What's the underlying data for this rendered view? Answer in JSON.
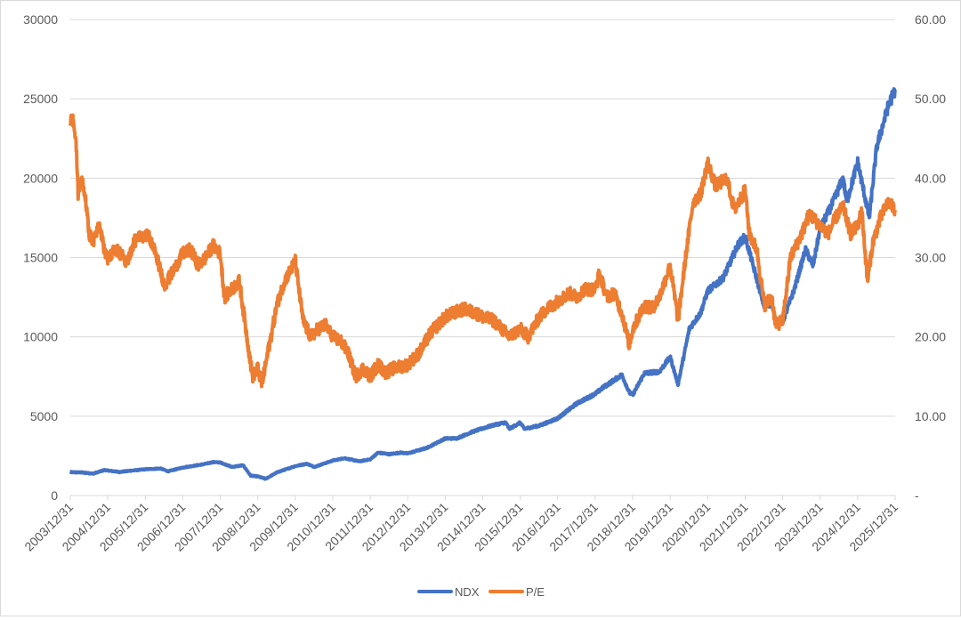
{
  "chart_data": {
    "type": "line",
    "title": "",
    "xlabel": "",
    "ylabel": "",
    "x_ticks": [
      "2003/12/31",
      "2004/12/31",
      "2005/12/31",
      "2006/12/31",
      "2007/12/31",
      "2008/12/31",
      "2009/12/31",
      "2010/12/31",
      "2011/12/31",
      "2012/12/31",
      "2013/12/31",
      "2014/12/31",
      "2015/12/31",
      "2016/12/31",
      "2017/12/31",
      "2018/12/31",
      "2019/12/31",
      "2020/12/31",
      "2021/12/31",
      "2022/12/31",
      "2023/12/31",
      "2024/12/31",
      "2025/12/31"
    ],
    "y_left": {
      "ylim": [
        0,
        30000
      ],
      "ticks": [
        "0",
        "5000",
        "10000",
        "15000",
        "20000",
        "25000",
        "30000"
      ]
    },
    "y_right": {
      "ylim": [
        0,
        60
      ],
      "ticks": [
        "-",
        "10.00",
        "20.00",
        "30.00",
        "40.00",
        "50.00",
        "60.00"
      ]
    },
    "grid": true,
    "legend_position": "bottom",
    "series": [
      {
        "name": "NDX",
        "axis": "left",
        "color": "#4472C4",
        "points": [
          [
            2003.99,
            1470
          ],
          [
            2004.3,
            1450
          ],
          [
            2004.6,
            1380
          ],
          [
            2004.9,
            1600
          ],
          [
            2005.3,
            1480
          ],
          [
            2005.6,
            1560
          ],
          [
            2005.99,
            1650
          ],
          [
            2006.4,
            1700
          ],
          [
            2006.6,
            1520
          ],
          [
            2006.99,
            1760
          ],
          [
            2007.5,
            1950
          ],
          [
            2007.8,
            2100
          ],
          [
            2007.99,
            2080
          ],
          [
            2008.3,
            1800
          ],
          [
            2008.6,
            1900
          ],
          [
            2008.8,
            1250
          ],
          [
            2008.99,
            1200
          ],
          [
            2009.2,
            1050
          ],
          [
            2009.5,
            1450
          ],
          [
            2009.99,
            1850
          ],
          [
            2010.3,
            2000
          ],
          [
            2010.5,
            1800
          ],
          [
            2010.99,
            2200
          ],
          [
            2011.3,
            2350
          ],
          [
            2011.7,
            2150
          ],
          [
            2011.99,
            2280
          ],
          [
            2012.2,
            2700
          ],
          [
            2012.5,
            2600
          ],
          [
            2012.8,
            2700
          ],
          [
            2012.99,
            2650
          ],
          [
            2013.5,
            3000
          ],
          [
            2013.99,
            3590
          ],
          [
            2014.3,
            3600
          ],
          [
            2014.7,
            4000
          ],
          [
            2014.99,
            4230
          ],
          [
            2015.3,
            4450
          ],
          [
            2015.6,
            4600
          ],
          [
            2015.7,
            4200
          ],
          [
            2015.99,
            4590
          ],
          [
            2016.1,
            4200
          ],
          [
            2016.5,
            4400
          ],
          [
            2016.99,
            4860
          ],
          [
            2017.5,
            5800
          ],
          [
            2017.99,
            6400
          ],
          [
            2018.2,
            6800
          ],
          [
            2018.7,
            7600
          ],
          [
            2018.9,
            6500
          ],
          [
            2018.99,
            6330
          ],
          [
            2019.3,
            7700
          ],
          [
            2019.7,
            7800
          ],
          [
            2019.99,
            8730
          ],
          [
            2020.2,
            7000
          ],
          [
            2020.5,
            10500
          ],
          [
            2020.8,
            11500
          ],
          [
            2020.99,
            12880
          ],
          [
            2021.4,
            13700
          ],
          [
            2021.8,
            15800
          ],
          [
            2021.99,
            16320
          ],
          [
            2022.2,
            14500
          ],
          [
            2022.5,
            11900
          ],
          [
            2022.7,
            12100
          ],
          [
            2022.8,
            11000
          ],
          [
            2022.99,
            10940
          ],
          [
            2023.3,
            13000
          ],
          [
            2023.6,
            15500
          ],
          [
            2023.8,
            14500
          ],
          [
            2023.99,
            16830
          ],
          [
            2024.3,
            18300
          ],
          [
            2024.6,
            20000
          ],
          [
            2024.7,
            18500
          ],
          [
            2024.99,
            21010
          ],
          [
            2025.3,
            17500
          ],
          [
            2025.5,
            22000
          ],
          [
            2025.8,
            24500
          ],
          [
            2025.99,
            25600
          ]
        ]
      },
      {
        "name": "P/E",
        "axis": "right",
        "color": "#ED7D31",
        "points": [
          [
            2003.99,
            47
          ],
          [
            2004.05,
            48
          ],
          [
            2004.15,
            44
          ],
          [
            2004.2,
            38
          ],
          [
            2004.3,
            40
          ],
          [
            2004.4,
            37
          ],
          [
            2004.5,
            33
          ],
          [
            2004.6,
            32
          ],
          [
            2004.75,
            34
          ],
          [
            2004.9,
            31
          ],
          [
            2004.99,
            30
          ],
          [
            2005.2,
            31
          ],
          [
            2005.5,
            29.5
          ],
          [
            2005.7,
            32
          ],
          [
            2005.99,
            33
          ],
          [
            2006.1,
            32.5
          ],
          [
            2006.3,
            30
          ],
          [
            2006.5,
            26.5
          ],
          [
            2006.7,
            28
          ],
          [
            2006.99,
            30.5
          ],
          [
            2007.2,
            31
          ],
          [
            2007.4,
            29
          ],
          [
            2007.6,
            30
          ],
          [
            2007.8,
            31.5
          ],
          [
            2007.99,
            30.5
          ],
          [
            2008.1,
            25
          ],
          [
            2008.3,
            26
          ],
          [
            2008.5,
            27
          ],
          [
            2008.7,
            20
          ],
          [
            2008.85,
            15
          ],
          [
            2008.99,
            16
          ],
          [
            2009.1,
            14
          ],
          [
            2009.3,
            19
          ],
          [
            2009.5,
            24
          ],
          [
            2009.7,
            27
          ],
          [
            2009.99,
            29.5
          ],
          [
            2010.2,
            22
          ],
          [
            2010.4,
            20
          ],
          [
            2010.6,
            21
          ],
          [
            2010.8,
            21.5
          ],
          [
            2010.99,
            20
          ],
          [
            2011.2,
            19.5
          ],
          [
            2011.4,
            18
          ],
          [
            2011.6,
            15
          ],
          [
            2011.8,
            16
          ],
          [
            2011.99,
            15
          ],
          [
            2012.2,
            16.5
          ],
          [
            2012.4,
            15.5
          ],
          [
            2012.6,
            16
          ],
          [
            2012.99,
            16.5
          ],
          [
            2013.3,
            18
          ],
          [
            2013.6,
            20.5
          ],
          [
            2013.99,
            22.5
          ],
          [
            2014.2,
            23
          ],
          [
            2014.5,
            23.5
          ],
          [
            2014.8,
            23
          ],
          [
            2014.99,
            22.5
          ],
          [
            2015.3,
            22
          ],
          [
            2015.5,
            21
          ],
          [
            2015.7,
            20
          ],
          [
            2015.99,
            21
          ],
          [
            2016.2,
            20
          ],
          [
            2016.5,
            22.5
          ],
          [
            2016.7,
            23.5
          ],
          [
            2016.99,
            24.5
          ],
          [
            2017.3,
            25.5
          ],
          [
            2017.5,
            25
          ],
          [
            2017.7,
            26
          ],
          [
            2017.99,
            26
          ],
          [
            2018.1,
            28
          ],
          [
            2018.3,
            25
          ],
          [
            2018.5,
            25.5
          ],
          [
            2018.7,
            23
          ],
          [
            2018.9,
            19
          ],
          [
            2018.99,
            21
          ],
          [
            2019.3,
            24
          ],
          [
            2019.5,
            23.5
          ],
          [
            2019.7,
            25
          ],
          [
            2019.99,
            29
          ],
          [
            2020.2,
            22
          ],
          [
            2020.4,
            30
          ],
          [
            2020.6,
            37
          ],
          [
            2020.8,
            38
          ],
          [
            2020.99,
            42
          ],
          [
            2021.2,
            39
          ],
          [
            2021.5,
            40
          ],
          [
            2021.7,
            36
          ],
          [
            2021.99,
            38.5
          ],
          [
            2022.1,
            33
          ],
          [
            2022.3,
            31
          ],
          [
            2022.5,
            24
          ],
          [
            2022.7,
            25
          ],
          [
            2022.8,
            21.5
          ],
          [
            2022.99,
            22
          ],
          [
            2023.2,
            30
          ],
          [
            2023.5,
            33
          ],
          [
            2023.7,
            35.5
          ],
          [
            2023.99,
            34
          ],
          [
            2024.2,
            33
          ],
          [
            2024.4,
            35
          ],
          [
            2024.6,
            36.5
          ],
          [
            2024.8,
            33
          ],
          [
            2024.99,
            34
          ],
          [
            2025.1,
            36
          ],
          [
            2025.25,
            27
          ],
          [
            2025.4,
            32
          ],
          [
            2025.6,
            35
          ],
          [
            2025.8,
            37
          ],
          [
            2025.99,
            36
          ]
        ]
      }
    ]
  }
}
